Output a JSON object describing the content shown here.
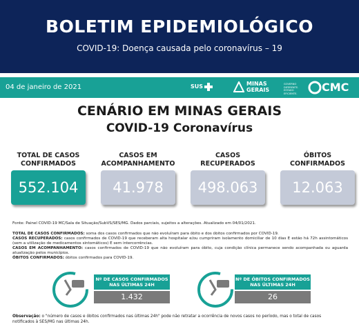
{
  "header": {
    "title": "BOLETIM EPIDEMIOLÓGICO",
    "subtitle": "COVID-19: Doença causada pelo coronavírus – 19"
  },
  "banner": {
    "date": "04 de janeiro de 2021",
    "logos": [
      "SUS",
      "MINAS GERAIS",
      "GOVERNO DIFERENTE. ESTADO EFICIENTE.",
      "CMC"
    ]
  },
  "heading": {
    "line1": "CENÁRIO EM MINAS GERAIS",
    "line2": "COVID-19 Coronavírus"
  },
  "cards": [
    {
      "label": "TOTAL DE CASOS CONFIRMADOS",
      "value": "552.104"
    },
    {
      "label": "CASOS EM ACOMPANHAMENTO",
      "value": "41.978"
    },
    {
      "label": "CASOS RECUPERADOS",
      "value": "498.063"
    },
    {
      "label": "ÓBITOS CONFIRMADOS",
      "value": "12.063"
    }
  ],
  "source": "Fonte: Painel COVID-19 MC/Sala de Situação/SubVS/SES/MG. Dados parciais, sujeitos a alterações. Atualizado em 04/01/2021.",
  "definitions": [
    {
      "term": "TOTAL DE CASOS CONFIRMADOS:",
      "text": "soma dos casos confirmados que não evoluíram para óbito e dos óbitos confirmados por COVID-19."
    },
    {
      "term": "CASOS RECUPERADOS:",
      "text": "casos confirmados de COVID-19 que receberam alta hospitalar e/ou cumpriram isolamento domiciliar de 10 dias E estão há 72h assintomáticos (sem a utilização de medicamentos sintomáticos) E sem intercorrências."
    },
    {
      "term": "CASOS EM ACOMPANHAMENTO:",
      "text": "casos confirmados de COVID-19 que não evoluíram para óbito, cuja condição clínica permanece sendo acompanhada ou aguarda atualização pelos municípios."
    },
    {
      "term": "ÓBITOS CONFIRMADOS:",
      "text": "óbitos confirmados para COVID-19."
    }
  ],
  "last24h": [
    {
      "label": "Nº DE CASOS CONFIRMADOS NAS ÚLTIMAS 24H",
      "value": "1.432"
    },
    {
      "label": "Nº DE ÓBITOS CONFIRMADOS NAS ÚLTIMAS 24H",
      "value": "26"
    }
  ],
  "note": {
    "term": "Observação:",
    "text": "o \"número de casos e óbitos confirmados nas últimas 24h\" pode não retratar a ocorrência de novos casos no período, mas o total de casos notificados à SES/MG nas últimas 24h."
  }
}
